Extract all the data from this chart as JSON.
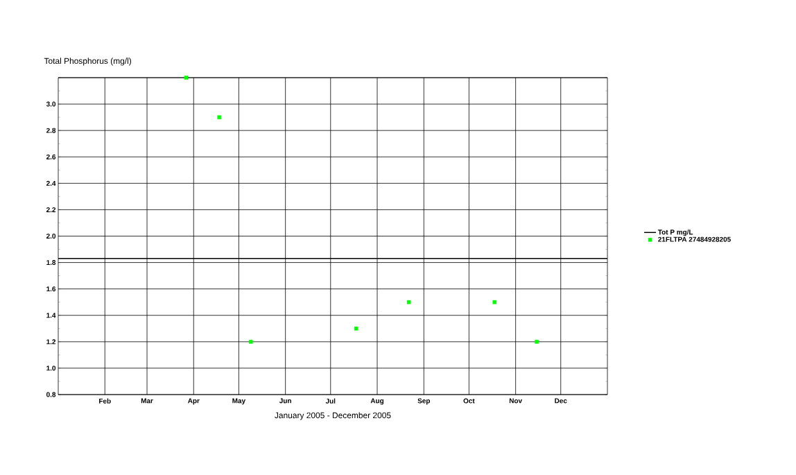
{
  "chart_data": {
    "type": "scatter",
    "ylabel": "Total Phosphorus (mg/l)",
    "xlabel": "January 2005 - December 2005",
    "xlim": [
      "2005-01-01",
      "2006-01-01"
    ],
    "xticks": [
      {
        "value": "2005-02-01",
        "label": "Feb"
      },
      {
        "value": "2005-03-01",
        "label": "Mar"
      },
      {
        "value": "2005-04-01",
        "label": "Apr"
      },
      {
        "value": "2005-05-01",
        "label": "May"
      },
      {
        "value": "2005-06-01",
        "label": "Jun"
      },
      {
        "value": "2005-07-01",
        "label": "Jul"
      },
      {
        "value": "2005-08-01",
        "label": "Aug"
      },
      {
        "value": "2005-09-01",
        "label": "Sep"
      },
      {
        "value": "2005-10-01",
        "label": "Oct"
      },
      {
        "value": "2005-11-01",
        "label": "Nov"
      },
      {
        "value": "2005-12-01",
        "label": "Dec"
      }
    ],
    "ylim": [
      0.8,
      3.2
    ],
    "yticks": [
      0.8,
      {
        "value": 1,
        "label": "1.0"
      },
      1.2,
      1.4,
      1.6,
      1.8,
      {
        "value": 2,
        "label": "2.0"
      },
      2.2,
      2.4,
      2.6,
      2.8,
      {
        "value": 3,
        "label": "3.0"
      },
      {
        "value": 3.2,
        "label": null
      }
    ],
    "grid": true,
    "legend": "right",
    "series": [
      {
        "type": "line",
        "name": "Tot P mg/L",
        "color": "#000000",
        "marker": "none",
        "line_style": "solid",
        "x": [
          "2005-01-01",
          "2006-01-01"
        ],
        "values": [
          1.83,
          1.83
        ]
      },
      {
        "name": "21FLTPA 27484928205",
        "color": "#00ff00",
        "marker": "square",
        "x": [
          "2005-03-27",
          "2005-04-18",
          "2005-05-09",
          "2005-07-18",
          "2005-08-22",
          "2005-10-18",
          "2005-11-15"
        ],
        "values": [
          3.2,
          2.9,
          1.2,
          1.3,
          1.5,
          1.5,
          1.2
        ]
      }
    ]
  }
}
